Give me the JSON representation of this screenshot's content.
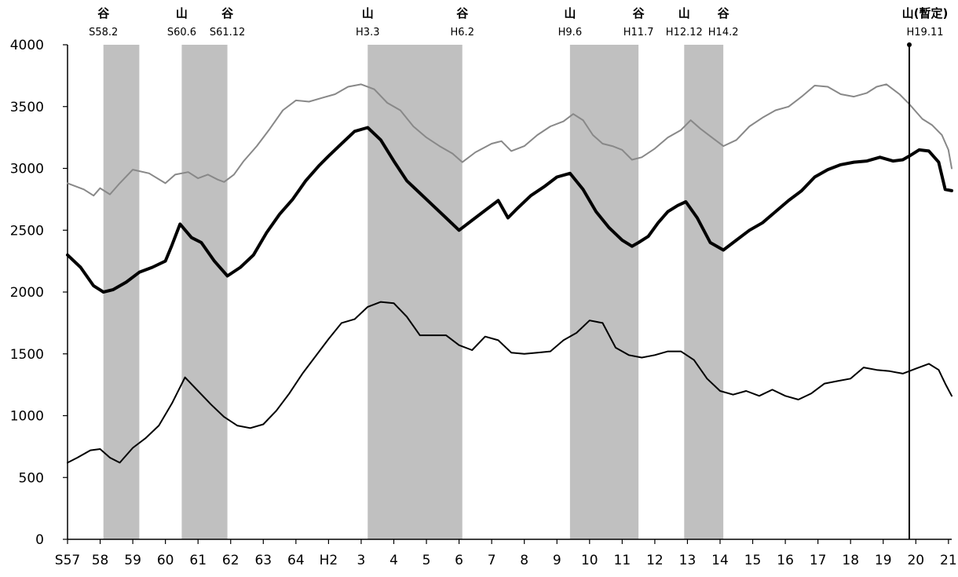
{
  "chart_data": {
    "type": "line",
    "title": "",
    "xlabel": "",
    "ylabel": "",
    "ylim": [
      0,
      4000
    ],
    "yticks": [
      0,
      500,
      1000,
      1500,
      2000,
      2500,
      3000,
      3500,
      4000
    ],
    "xlim": [
      1982.0,
      2009.1
    ],
    "xtick_labels": [
      "S57",
      "58",
      "59",
      "60",
      "61",
      "62",
      "63",
      "64",
      "H2",
      "3",
      "4",
      "5",
      "6",
      "7",
      "8",
      "9",
      "10",
      "11",
      "12",
      "13",
      "14",
      "15",
      "16",
      "17",
      "18",
      "19",
      "20",
      "21"
    ],
    "xtick_years": [
      1982,
      1983,
      1984,
      1985,
      1986,
      1987,
      1988,
      1989,
      1990,
      1991,
      1992,
      1993,
      1994,
      1995,
      1996,
      1997,
      1998,
      1999,
      2000,
      2001,
      2002,
      2003,
      2004,
      2005,
      2006,
      2007,
      2008,
      2009
    ],
    "grid": false,
    "legend": "none",
    "recessions": [
      {
        "start": 1983.1,
        "end": 1984.2
      },
      {
        "start": 1985.5,
        "end": 1986.9
      },
      {
        "start": 1991.2,
        "end": 1994.1
      },
      {
        "start": 1997.4,
        "end": 1999.5
      },
      {
        "start": 2000.9,
        "end": 2002.1
      }
    ],
    "peak_marker": {
      "x": 2007.8
    },
    "annotations": [
      {
        "x": 1983.1,
        "kanji": "谷",
        "date": "S58.2"
      },
      {
        "x": 1985.5,
        "kanji": "山",
        "date": "S60.6"
      },
      {
        "x": 1986.9,
        "kanji": "谷",
        "date": "S61.12"
      },
      {
        "x": 1991.2,
        "kanji": "山",
        "date": "H3.3"
      },
      {
        "x": 1994.1,
        "kanji": "谷",
        "date": "H6.2"
      },
      {
        "x": 1997.4,
        "kanji": "山",
        "date": "H9.6"
      },
      {
        "x": 1999.5,
        "kanji": "谷",
        "date": "H11.7"
      },
      {
        "x": 2000.9,
        "kanji": "山",
        "date": "H12.12"
      },
      {
        "x": 2002.1,
        "kanji": "谷",
        "date": "H14.2"
      },
      {
        "x": 2007.8,
        "kanji": "山(暫定)",
        "date": "H19.11"
      }
    ],
    "series": [
      {
        "color": "#888888",
        "width": 2,
        "x": [
          1982.0,
          1982.5,
          1982.8,
          1983.0,
          1983.3,
          1983.6,
          1984.0,
          1984.5,
          1985.0,
          1985.3,
          1985.7,
          1986.0,
          1986.3,
          1986.6,
          1986.8,
          1987.1,
          1987.4,
          1987.8,
          1988.2,
          1988.6,
          1989.0,
          1989.4,
          1989.8,
          1990.2,
          1990.6,
          1991.0,
          1991.4,
          1991.8,
          1992.2,
          1992.6,
          1993.0,
          1993.4,
          1993.8,
          1994.1,
          1994.5,
          1995.0,
          1995.3,
          1995.6,
          1996.0,
          1996.4,
          1996.8,
          1997.2,
          1997.5,
          1997.8,
          1998.1,
          1998.4,
          1998.7,
          1999.0,
          1999.3,
          1999.6,
          2000.0,
          2000.4,
          2000.8,
          2001.1,
          2001.4,
          2001.8,
          2002.1,
          2002.5,
          2002.9,
          2003.3,
          2003.7,
          2004.1,
          2004.5,
          2004.9,
          2005.3,
          2005.7,
          2006.1,
          2006.5,
          2006.8,
          2007.1,
          2007.5,
          2007.8,
          2008.2,
          2008.5,
          2008.8,
          2009.0,
          2009.1
        ],
        "y": [
          2880,
          2830,
          2780,
          2840,
          2790,
          2880,
          2990,
          2960,
          2880,
          2950,
          2970,
          2920,
          2950,
          2910,
          2890,
          2950,
          3060,
          3180,
          3320,
          3470,
          3550,
          3540,
          3570,
          3600,
          3660,
          3680,
          3640,
          3530,
          3470,
          3340,
          3250,
          3180,
          3120,
          3050,
          3130,
          3200,
          3220,
          3140,
          3180,
          3270,
          3340,
          3380,
          3440,
          3390,
          3270,
          3200,
          3180,
          3150,
          3070,
          3090,
          3160,
          3250,
          3310,
          3390,
          3320,
          3240,
          3180,
          3230,
          3340,
          3410,
          3470,
          3500,
          3580,
          3670,
          3660,
          3600,
          3580,
          3610,
          3660,
          3680,
          3600,
          3520,
          3400,
          3350,
          3270,
          3150,
          3000
        ]
      },
      {
        "color": "#000000",
        "width": 4,
        "x": [
          1982.0,
          1982.4,
          1982.8,
          1983.1,
          1983.4,
          1983.8,
          1984.2,
          1984.6,
          1985.0,
          1985.2,
          1985.45,
          1985.8,
          1986.1,
          1986.5,
          1986.9,
          1987.3,
          1987.7,
          1988.1,
          1988.5,
          1988.9,
          1989.3,
          1989.7,
          1990.0,
          1990.4,
          1990.8,
          1991.2,
          1991.6,
          1992.0,
          1992.4,
          1992.8,
          1993.2,
          1993.6,
          1994.0,
          1994.4,
          1994.8,
          1995.2,
          1995.5,
          1995.8,
          1996.2,
          1996.6,
          1997.0,
          1997.4,
          1997.8,
          1998.2,
          1998.6,
          1999.0,
          1999.3,
          1999.5,
          1999.8,
          2000.1,
          2000.4,
          2000.7,
          2000.95,
          2001.3,
          2001.7,
          2002.1,
          2002.5,
          2002.9,
          2003.3,
          2003.7,
          2004.1,
          2004.5,
          2004.9,
          2005.3,
          2005.7,
          2006.1,
          2006.5,
          2006.9,
          2007.3,
          2007.6,
          2007.8,
          2008.1,
          2008.4,
          2008.7,
          2008.9,
          2009.1
        ],
        "y": [
          2300,
          2200,
          2050,
          2000,
          2020,
          2080,
          2160,
          2200,
          2250,
          2380,
          2550,
          2440,
          2400,
          2250,
          2130,
          2200,
          2300,
          2480,
          2630,
          2750,
          2900,
          3020,
          3100,
          3200,
          3300,
          3330,
          3230,
          3060,
          2900,
          2800,
          2700,
          2600,
          2500,
          2580,
          2660,
          2740,
          2600,
          2680,
          2780,
          2850,
          2930,
          2960,
          2830,
          2650,
          2520,
          2420,
          2370,
          2400,
          2450,
          2560,
          2650,
          2700,
          2730,
          2600,
          2400,
          2340,
          2420,
          2500,
          2560,
          2650,
          2740,
          2820,
          2930,
          2990,
          3030,
          3050,
          3060,
          3090,
          3060,
          3070,
          3100,
          3150,
          3140,
          3050,
          2830,
          2820
        ]
      },
      {
        "color": "#000000",
        "width": 2,
        "x": [
          1982.0,
          1982.3,
          1982.7,
          1983.0,
          1983.3,
          1983.6,
          1984.0,
          1984.4,
          1984.8,
          1985.2,
          1985.6,
          1986.0,
          1986.4,
          1986.8,
          1987.2,
          1987.6,
          1988.0,
          1988.4,
          1988.8,
          1989.2,
          1989.6,
          1990.0,
          1990.4,
          1990.8,
          1991.2,
          1991.6,
          1992.0,
          1992.4,
          1992.8,
          1993.2,
          1993.6,
          1994.0,
          1994.4,
          1994.8,
          1995.2,
          1995.6,
          1996.0,
          1996.4,
          1996.8,
          1997.2,
          1997.6,
          1998.0,
          1998.4,
          1998.8,
          1999.2,
          1999.6,
          2000.0,
          2000.4,
          2000.8,
          2001.2,
          2001.6,
          2002.0,
          2002.4,
          2002.8,
          2003.2,
          2003.6,
          2004.0,
          2004.4,
          2004.8,
          2005.2,
          2005.6,
          2006.0,
          2006.4,
          2006.8,
          2007.2,
          2007.6,
          2008.0,
          2008.4,
          2008.7,
          2008.9,
          2009.1
        ],
        "y": [
          620,
          660,
          720,
          730,
          660,
          620,
          740,
          820,
          920,
          1100,
          1310,
          1200,
          1090,
          990,
          920,
          900,
          930,
          1040,
          1180,
          1340,
          1480,
          1620,
          1750,
          1780,
          1880,
          1920,
          1910,
          1800,
          1650,
          1650,
          1650,
          1570,
          1530,
          1640,
          1610,
          1510,
          1500,
          1510,
          1520,
          1610,
          1670,
          1770,
          1750,
          1550,
          1490,
          1470,
          1490,
          1520,
          1520,
          1450,
          1300,
          1200,
          1170,
          1200,
          1160,
          1210,
          1160,
          1130,
          1180,
          1260,
          1280,
          1300,
          1390,
          1370,
          1360,
          1340,
          1380,
          1420,
          1370,
          1260,
          1160
        ]
      }
    ]
  }
}
